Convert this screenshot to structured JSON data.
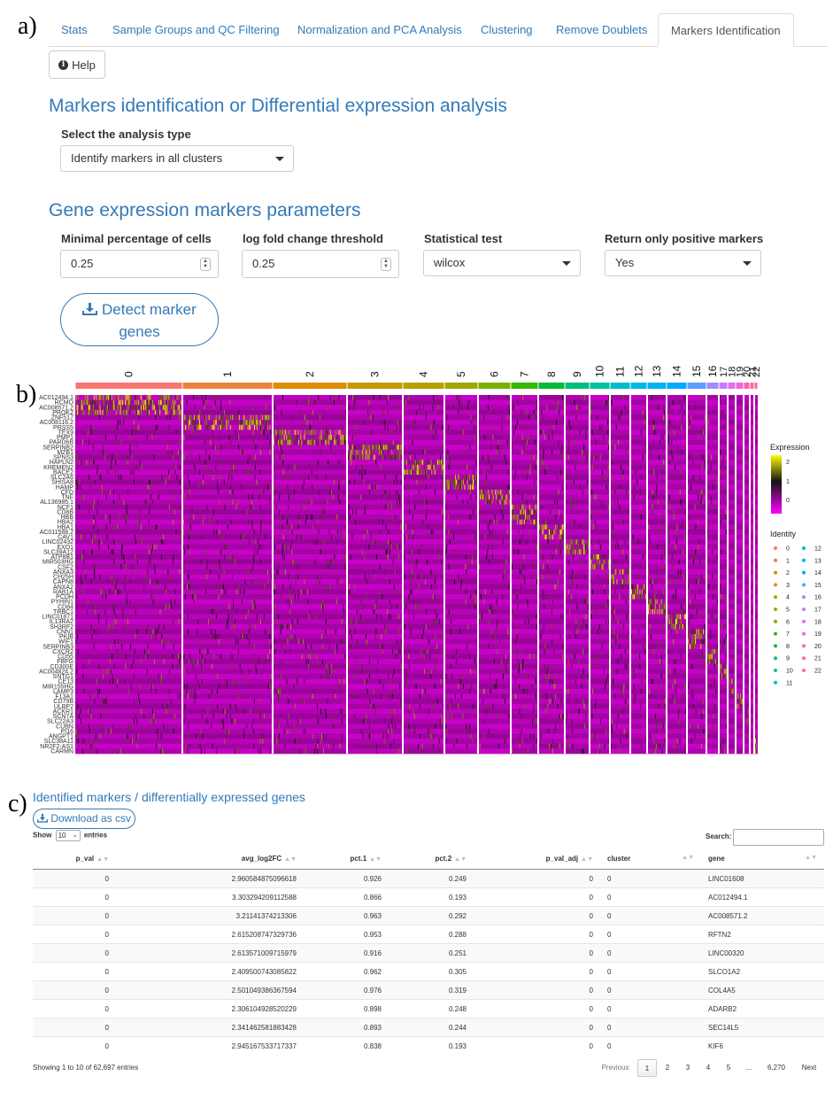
{
  "panel_labels": {
    "a": "a)",
    "b": "b)",
    "c": "c)"
  },
  "tabs": [
    "Stats",
    "Sample Groups and QC Filtering",
    "Normalization and PCA Analysis",
    "Clustering",
    "Remove Doublets",
    "Markers Identification"
  ],
  "active_tab": "Markers Identification",
  "help_button": "Help",
  "section1_title": "Markers identification or Differential expression analysis",
  "analysis_type_label": "Select the analysis type",
  "analysis_type_value": "Identify markers in all clusters",
  "section2_title": "Gene expression markers parameters",
  "params": {
    "min_pct_label": "Minimal percentage of cells",
    "min_pct_value": "0.25",
    "logfc_label": "log fold change threshold",
    "logfc_value": "0.25",
    "test_label": "Statistical test",
    "test_value": "wilcox",
    "pos_label": "Return only positive markers",
    "pos_value": "Yes"
  },
  "detect_button": "Detect marker genes",
  "heatmap": {
    "clusters": [
      "0",
      "1",
      "2",
      "3",
      "4",
      "5",
      "6",
      "7",
      "8",
      "9",
      "10",
      "11",
      "12",
      "13",
      "14",
      "15",
      "16",
      "17",
      "18",
      "19",
      "20",
      "21",
      "22"
    ],
    "cluster_colors": [
      "#f8766d",
      "#ec823c",
      "#de8c00",
      "#c59900",
      "#b79f00",
      "#a3a500",
      "#7cae00",
      "#39b600",
      "#00ba38",
      "#00bf7d",
      "#00c19f",
      "#00bfc4",
      "#00b8e7",
      "#00b4f0",
      "#00a9ff",
      "#619cff",
      "#9f8cff",
      "#c77cff",
      "#e76bf3",
      "#f564e3",
      "#ff62bc",
      "#ff6c90",
      "#ff67a4"
    ],
    "genes": [
      "AC012494.1",
      "RCMO",
      "AC008571.2",
      "PROK2",
      "ZNF517",
      "AC008116.2",
      "PRSS5",
      "TEX9",
      "PMP1",
      "PARD6B",
      "SERPINB2",
      "MZB1",
      "SPNS3",
      "HAPLN2",
      "KREMEN2",
      "BACE2",
      "SLC2A6",
      "SHISA8",
      "HAMP",
      "CFD",
      "TNF",
      "AL136985.1",
      "NCF1",
      "CD8B",
      "HBB",
      "HBA2",
      "HBA1",
      "AC011588.2",
      "CAV1",
      "LINC02432",
      "EXO1",
      "SLC39A12",
      "ATP8B1",
      "MIR503HG",
      "CSF2",
      "ANXA3",
      "CH25H",
      "CAPN8",
      "ANXA2",
      "RAB1A",
      "PCDH",
      "PYHIN1",
      "CD84",
      "TRBC1",
      "LINC01871",
      "IL13RA2",
      "SH3RF2",
      "CNN1",
      "PKIB",
      "WIF1",
      "SERPINB3",
      "CXCR2",
      "CD55",
      "FBFG",
      "CD300E",
      "AC004824.2",
      "SNTG1",
      "CE13",
      "MIR155HG",
      "LAMP3",
      "F13A1",
      "CD79B",
      "ULBP2",
      "ACKR1",
      "SCN7A",
      "SLC22A3",
      "CUBN",
      "PI16",
      "ANGPT1",
      "SLC38A11",
      "NR2F2-AS1",
      "CARMN"
    ],
    "legend_title": "Expression",
    "legend_ticks": [
      "2",
      "1",
      "0"
    ],
    "identity_title": "Identity"
  },
  "table_section": {
    "title": "Identified markers / differentially expressed genes",
    "download": "Download as csv",
    "show_label": "Show",
    "show_value": "10",
    "entries_label": "entries",
    "search_label": "Search:",
    "columns": [
      "p_val",
      "avg_log2FC",
      "pct.1",
      "pct.2",
      "p_val_adj",
      "cluster",
      "gene"
    ],
    "rows": [
      [
        "0",
        "2.960584875096618",
        "0.926",
        "0.249",
        "0",
        "0",
        "LINC01608"
      ],
      [
        "0",
        "3.303294209112588",
        "0.866",
        "0.193",
        "0",
        "0",
        "AC012494.1"
      ],
      [
        "0",
        "3.21141374213306",
        "0.963",
        "0.292",
        "0",
        "0",
        "AC008571.2"
      ],
      [
        "0",
        "2.615208747329736",
        "0.953",
        "0.288",
        "0",
        "0",
        "RFTN2"
      ],
      [
        "0",
        "2.613571009715979",
        "0.916",
        "0.251",
        "0",
        "0",
        "LINC00320"
      ],
      [
        "0",
        "2.409500743085822",
        "0.962",
        "0.305",
        "0",
        "0",
        "SLCO1A2"
      ],
      [
        "0",
        "2.501049386367594",
        "0.976",
        "0.319",
        "0",
        "0",
        "COL4A5"
      ],
      [
        "0",
        "2.306104928520229",
        "0.898",
        "0.248",
        "0",
        "0",
        "ADARB2"
      ],
      [
        "0",
        "2.341462581883428",
        "0.893",
        "0.244",
        "0",
        "0",
        "SEC14L5"
      ],
      [
        "0",
        "2.945167533717337",
        "0.838",
        "0.193",
        "0",
        "0",
        "KIF6"
      ]
    ],
    "info": "Showing 1 to 10 of 62,697 entries",
    "pagination": [
      "Previous",
      "1",
      "2",
      "3",
      "4",
      "5",
      "...",
      "6,270",
      "Next"
    ]
  }
}
